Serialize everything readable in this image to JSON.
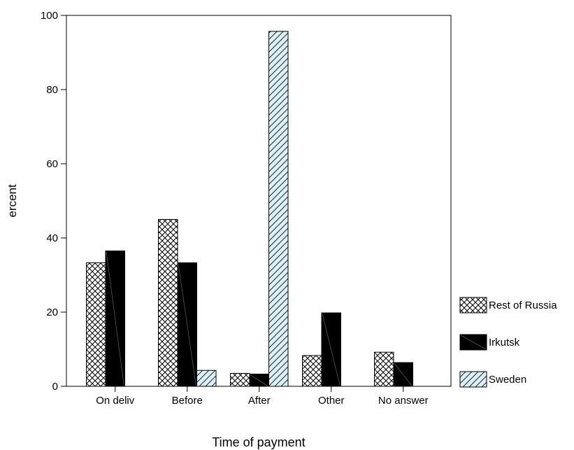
{
  "chart_data": {
    "type": "bar",
    "title": "",
    "xlabel": "Time of payment",
    "ylabel": "ercent",
    "ylim": [
      0,
      100
    ],
    "yticks": [
      0,
      20,
      40,
      60,
      80,
      100
    ],
    "categories": [
      "On deliv",
      "Before",
      "After",
      "Other",
      "No answer"
    ],
    "series": [
      {
        "name": "Rest of Russia",
        "values": [
          33.3,
          45.0,
          3.5,
          8.3,
          9.2
        ],
        "pattern": "crosshatch"
      },
      {
        "name": "Irkutsk",
        "values": [
          36.5,
          33.3,
          3.3,
          19.8,
          6.4
        ],
        "pattern": "solid-dark"
      },
      {
        "name": "Sweden",
        "values": [
          0,
          4.3,
          95.7,
          0,
          0
        ],
        "pattern": "diagonal-light"
      }
    ],
    "grid": false,
    "legend_position": "right"
  }
}
